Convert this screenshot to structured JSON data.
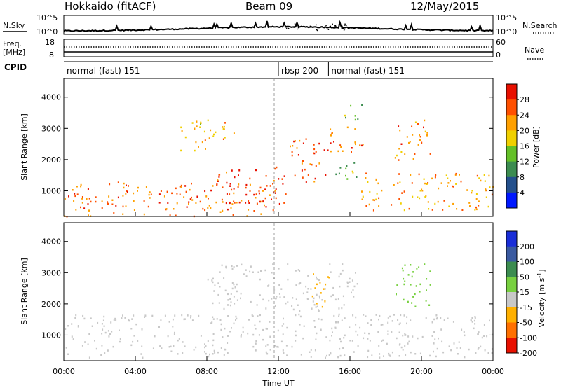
{
  "header": {
    "station": "Hokkaido (fitACF)",
    "beam": "Beam 09",
    "date": "12/May/2015"
  },
  "top_panels": {
    "nsky_label": "N.Sky",
    "nsearch_label": "N.Search",
    "nsky_ticks": [
      "10^5",
      "10^0"
    ],
    "nsearch_ticks": [
      "10^5",
      "10^0"
    ],
    "freq_label_1": "Freq.",
    "freq_label_2": "[MHz]",
    "freq_ticks": [
      "18",
      "8"
    ],
    "nave_label": "Nave",
    "nave_ticks": [
      "60",
      "0"
    ],
    "cpid_label": "CPID",
    "cpid_segments": [
      {
        "label": "normal (fast) 151",
        "start_h": 0,
        "end_h": 12.0
      },
      {
        "label": "rbsp 200",
        "start_h": 12.0,
        "end_h": 14.8
      },
      {
        "label": "normal (fast) 151",
        "start_h": 14.8,
        "end_h": 24
      }
    ]
  },
  "chart_data": [
    {
      "type": "heatmap",
      "name": "power",
      "ylabel": "Slant Range [km]",
      "ylim": [
        180,
        4600
      ],
      "yticks": [
        1000,
        2000,
        3000,
        4000
      ],
      "xlim": [
        0,
        24
      ],
      "colorbar_label": "Power [dB]",
      "colorbar_ticks": [
        4,
        8,
        12,
        16,
        20,
        24,
        28
      ],
      "colorbar_range": [
        0,
        32
      ],
      "colors": [
        "#0018ff",
        "#24508c",
        "#3c8c50",
        "#64c028",
        "#f0d000",
        "#ffa000",
        "#ff5000",
        "#e81000"
      ],
      "features": [
        {
          "x": [
            0,
            12
          ],
          "y": [
            200,
            1300
          ],
          "value": 25
        },
        {
          "x": [
            8.5,
            12.5
          ],
          "y": [
            600,
            1800
          ],
          "value": 28
        },
        {
          "x": [
            12.5,
            14.6
          ],
          "y": [
            1300,
            2700
          ],
          "value": 26
        },
        {
          "x": [
            6.5,
            9.5
          ],
          "y": [
            2300,
            3300
          ],
          "value": 20
        },
        {
          "x": [
            14.6,
            16.8
          ],
          "y": [
            2200,
            3100
          ],
          "value": 25
        },
        {
          "x": [
            15.5,
            16.8
          ],
          "y": [
            3300,
            3800
          ],
          "value": 14
        },
        {
          "x": [
            16.5,
            24
          ],
          "y": [
            400,
            1600
          ],
          "value": 22
        },
        {
          "x": [
            18.5,
            20.5
          ],
          "y": [
            1900,
            3300
          ],
          "value": 24
        },
        {
          "x": [
            14.8,
            16.5
          ],
          "y": [
            1400,
            2000
          ],
          "value": 14
        }
      ]
    },
    {
      "type": "heatmap",
      "name": "velocity",
      "ylabel": "Slant Range [km]",
      "ylim": [
        180,
        4600
      ],
      "yticks": [
        1000,
        2000,
        3000,
        4000
      ],
      "xlim": [
        0,
        24
      ],
      "xlabel": "Time UT",
      "xticks": [
        "00:00",
        "04:00",
        "08:00",
        "12:00",
        "16:00",
        "20:00",
        "00:00"
      ],
      "colorbar_label": "Velocity [m s^-1]",
      "colorbar_ticks": [
        "200",
        "100",
        "50",
        "15",
        "-15",
        "-50",
        "-100",
        "-200"
      ],
      "colors": [
        "#1a2ed8",
        "#3a5aa0",
        "#3c8c50",
        "#78d040",
        "#c8c8c8",
        "#ffb000",
        "#ff7000",
        "#e81000"
      ],
      "features": [
        {
          "x": [
            0,
            24
          ],
          "y": [
            300,
            1700
          ],
          "value": 0
        },
        {
          "x": [
            8,
            16.5
          ],
          "y": [
            1800,
            3300
          ],
          "value": 0
        },
        {
          "x": [
            13.8,
            14.8
          ],
          "y": [
            1900,
            3100
          ],
          "value": -30
        },
        {
          "x": [
            18.5,
            20.5
          ],
          "y": [
            1900,
            3300
          ],
          "value": 30
        }
      ]
    }
  ]
}
